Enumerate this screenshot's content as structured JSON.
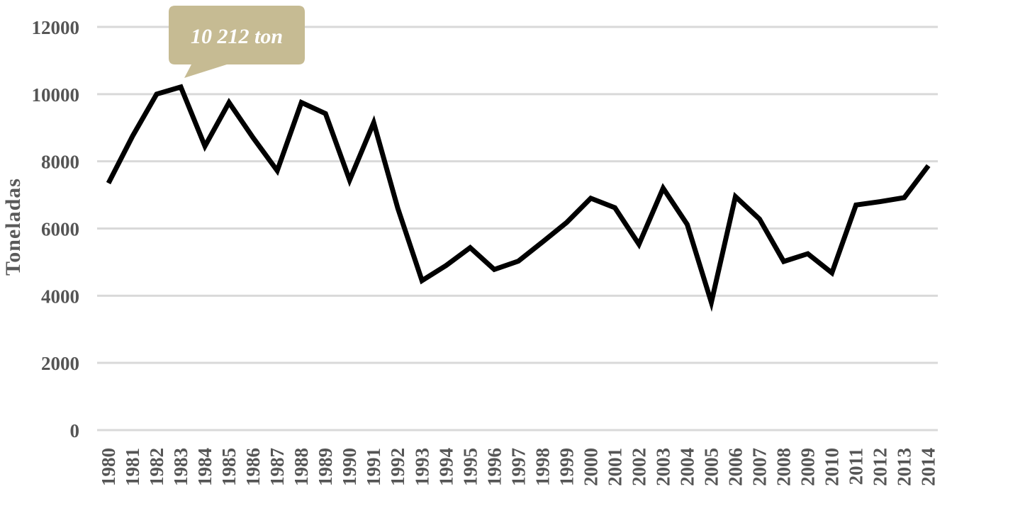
{
  "chart_data": {
    "type": "line",
    "title": "",
    "xlabel": "",
    "ylabel": "Toneladas",
    "ylim": [
      0,
      12000
    ],
    "yticks": [
      0,
      2000,
      4000,
      6000,
      8000,
      10000,
      12000
    ],
    "grid": true,
    "legend": "none",
    "categories": [
      "1980",
      "1981",
      "1982",
      "1983",
      "1984",
      "1985",
      "1986",
      "1987",
      "1988",
      "1989",
      "1990",
      "1991",
      "1992",
      "1993",
      "1994",
      "1995",
      "1996",
      "1997",
      "1998",
      "1999",
      "2000",
      "2001",
      "2002",
      "2003",
      "2004",
      "2005",
      "2006",
      "2007",
      "2008",
      "2009",
      "2010",
      "2011",
      "2012",
      "2013",
      "2014"
    ],
    "series": [
      {
        "values": [
          7350,
          8750,
          10000,
          10212,
          8450,
          9750,
          8700,
          7720,
          9750,
          9420,
          7440,
          9150,
          6600,
          4450,
          4900,
          5430,
          4780,
          5030,
          5600,
          6180,
          6900,
          6620,
          5530,
          7200,
          6120,
          3800,
          6950,
          6280,
          5020,
          5250,
          4680,
          6700,
          6800,
          6920,
          7870
        ],
        "color": "#000000"
      }
    ],
    "annotations": [
      {
        "text": "10 212 ton",
        "category": "1983",
        "value": 10212,
        "background": "#c6bb93"
      }
    ],
    "colors": {
      "grid": "#d9d9d9",
      "tick_text": "#555555",
      "axis_label": "#595959"
    }
  }
}
